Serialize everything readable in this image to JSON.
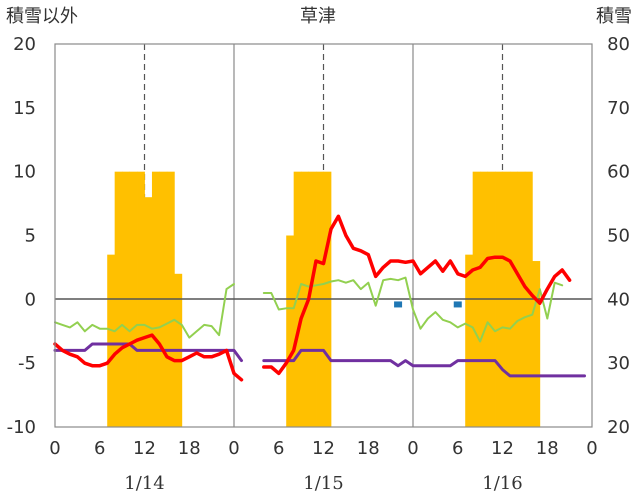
{
  "chart_data": {
    "type": "line",
    "title": "草津",
    "y_left_label": "積雪以外",
    "y_right_label": "積雪",
    "y_left_range": [
      -10,
      20
    ],
    "y_left_ticks": [
      "20",
      "15",
      "10",
      "5",
      "0",
      "-5",
      "-10"
    ],
    "y_right_range": [
      20,
      80
    ],
    "y_right_ticks": [
      "80",
      "70",
      "60",
      "50",
      "40",
      "30",
      "20"
    ],
    "x_range_hours": [
      0,
      72
    ],
    "x_tick_labels": [
      "0",
      "6",
      "12",
      "18",
      "0",
      "6",
      "12",
      "18",
      "0",
      "6",
      "12",
      "18",
      "0"
    ],
    "day_labels": [
      "1/14",
      "1/15",
      "1/16"
    ],
    "grid": "dashed vertical at 12h, solid vertical at day boundaries",
    "colors": {
      "snow_depth": "#ffc000",
      "temperature": "#ff0000",
      "wind": "#92d050",
      "pressure_trend": "#7030a0",
      "precip": "#1f77b4"
    },
    "snow_depth_bars": [
      {
        "x": 7.5,
        "v": 47
      },
      {
        "x": 8.5,
        "v": 60
      },
      {
        "x": 9.5,
        "v": 60
      },
      {
        "x": 10.5,
        "v": 60
      },
      {
        "x": 11.5,
        "v": 60
      },
      {
        "x": 12.5,
        "v": 56
      },
      {
        "x": 13.5,
        "v": 60
      },
      {
        "x": 14.5,
        "v": 60
      },
      {
        "x": 15.5,
        "v": 60
      },
      {
        "x": 16.5,
        "v": 44
      },
      {
        "x": 31.5,
        "v": 50
      },
      {
        "x": 32.5,
        "v": 60
      },
      {
        "x": 33.5,
        "v": 60
      },
      {
        "x": 34.5,
        "v": 60
      },
      {
        "x": 35.5,
        "v": 60
      },
      {
        "x": 36.5,
        "v": 60
      },
      {
        "x": 55.5,
        "v": 47
      },
      {
        "x": 56.5,
        "v": 60
      },
      {
        "x": 57.5,
        "v": 60
      },
      {
        "x": 58.5,
        "v": 60
      },
      {
        "x": 59.5,
        "v": 60
      },
      {
        "x": 60.5,
        "v": 60
      },
      {
        "x": 61.5,
        "v": 60
      },
      {
        "x": 62.5,
        "v": 60
      },
      {
        "x": 63.5,
        "v": 60
      },
      {
        "x": 64.5,
        "v": 46
      }
    ],
    "temperature": [
      [
        [
          0,
          -3.5
        ],
        [
          1,
          -4
        ],
        [
          2,
          -4.3
        ],
        [
          3,
          -4.5
        ],
        [
          4,
          -5
        ],
        [
          5,
          -5.2
        ],
        [
          6,
          -5.2
        ],
        [
          7,
          -5
        ],
        [
          8,
          -4.3
        ],
        [
          9,
          -3.8
        ],
        [
          10,
          -3.5
        ],
        [
          11,
          -3.2
        ],
        [
          12,
          -3
        ],
        [
          13,
          -2.8
        ],
        [
          14,
          -3.5
        ],
        [
          15,
          -4.5
        ],
        [
          16,
          -4.8
        ],
        [
          17,
          -4.8
        ],
        [
          18,
          -4.5
        ],
        [
          19,
          -4.2
        ],
        [
          20,
          -4.5
        ],
        [
          21,
          -4.5
        ],
        [
          22,
          -4.3
        ],
        [
          23,
          -4
        ],
        [
          24,
          -5.8
        ],
        [
          25,
          -6.3
        ]
      ],
      [
        [
          28,
          -5.3
        ],
        [
          29,
          -5.3
        ],
        [
          30,
          -5.8
        ],
        [
          31,
          -5
        ],
        [
          32,
          -4
        ],
        [
          33,
          -1.5
        ],
        [
          34,
          0
        ],
        [
          35,
          3
        ],
        [
          36,
          2.8
        ],
        [
          37,
          5.5
        ],
        [
          38,
          6.5
        ],
        [
          39,
          5
        ],
        [
          40,
          4
        ],
        [
          41,
          3.8
        ],
        [
          42,
          3.5
        ],
        [
          43,
          1.8
        ],
        [
          44,
          2.5
        ],
        [
          45,
          3
        ],
        [
          46,
          3
        ],
        [
          47,
          2.9
        ],
        [
          48,
          3
        ],
        [
          49,
          2
        ],
        [
          50,
          2.5
        ],
        [
          51,
          3
        ],
        [
          52,
          2.2
        ],
        [
          53,
          3
        ],
        [
          54,
          2
        ],
        [
          55,
          1.8
        ],
        [
          56,
          2.3
        ],
        [
          57,
          2.5
        ],
        [
          58,
          3.2
        ],
        [
          59,
          3.3
        ],
        [
          60,
          3.3
        ],
        [
          61,
          3
        ],
        [
          62,
          2
        ],
        [
          63,
          1
        ],
        [
          64,
          0.3
        ],
        [
          65,
          -0.3
        ],
        [
          66,
          0.8
        ],
        [
          67,
          1.8
        ],
        [
          68,
          2.3
        ],
        [
          69,
          1.5
        ]
      ]
    ],
    "wind": [
      [
        [
          0,
          -1.8
        ],
        [
          1,
          -2
        ],
        [
          2,
          -2.2
        ],
        [
          3,
          -1.8
        ],
        [
          4,
          -2.5
        ],
        [
          5,
          -2
        ],
        [
          6,
          -2.3
        ],
        [
          7,
          -2.3
        ],
        [
          8,
          -2.5
        ],
        [
          9,
          -2
        ],
        [
          10,
          -2.5
        ],
        [
          11,
          -2
        ],
        [
          12,
          -2
        ],
        [
          13,
          -2.3
        ],
        [
          14,
          -2.2
        ],
        [
          15,
          -1.9
        ],
        [
          16,
          -1.6
        ],
        [
          17,
          -2
        ],
        [
          18,
          -3
        ],
        [
          19,
          -2.5
        ],
        [
          20,
          -2
        ],
        [
          21,
          -2.1
        ],
        [
          22,
          -2.8
        ],
        [
          23,
          0.8
        ],
        [
          24,
          1.2
        ]
      ],
      [
        [
          28,
          0.5
        ],
        [
          29,
          0.5
        ],
        [
          30,
          -0.8
        ],
        [
          31,
          -0.7
        ],
        [
          32,
          -0.7
        ],
        [
          33,
          1.2
        ],
        [
          34,
          1
        ],
        [
          35,
          1.1
        ],
        [
          36,
          1.2
        ],
        [
          37,
          1.4
        ],
        [
          38,
          1.5
        ],
        [
          39,
          1.3
        ],
        [
          40,
          1.5
        ],
        [
          41,
          0.8
        ],
        [
          42,
          1.3
        ],
        [
          43,
          -0.5
        ],
        [
          44,
          1.5
        ],
        [
          45,
          1.6
        ],
        [
          46,
          1.5
        ],
        [
          47,
          1.7
        ],
        [
          48,
          -0.8
        ],
        [
          49,
          -2.3
        ],
        [
          50,
          -1.5
        ],
        [
          51,
          -1
        ],
        [
          52,
          -1.6
        ],
        [
          53,
          -1.8
        ],
        [
          54,
          -2.2
        ],
        [
          55,
          -1.9
        ],
        [
          56,
          -2.2
        ],
        [
          57,
          -3.3
        ],
        [
          58,
          -1.8
        ],
        [
          59,
          -2.5
        ],
        [
          60,
          -2.2
        ],
        [
          61,
          -2.3
        ],
        [
          62,
          -1.7
        ],
        [
          63,
          -1.4
        ],
        [
          64,
          -1.2
        ],
        [
          65,
          0.8
        ],
        [
          66,
          -1.5
        ],
        [
          67,
          1.3
        ],
        [
          68,
          1.1
        ]
      ]
    ],
    "pressure_trend": [
      [
        [
          0,
          -4
        ],
        [
          4,
          -4
        ],
        [
          5,
          -3.5
        ],
        [
          10,
          -3.5
        ],
        [
          11,
          -4
        ],
        [
          24,
          -4
        ],
        [
          25,
          -4.8
        ]
      ],
      [
        [
          28,
          -4.8
        ],
        [
          32,
          -4.8
        ],
        [
          33,
          -4
        ],
        [
          36,
          -4
        ],
        [
          37,
          -4.8
        ],
        [
          45,
          -4.8
        ],
        [
          46,
          -5.2
        ],
        [
          47,
          -4.8
        ],
        [
          48,
          -5.2
        ],
        [
          53,
          -5.2
        ],
        [
          54,
          -4.8
        ],
        [
          59,
          -4.8
        ],
        [
          60,
          -5.5
        ],
        [
          61,
          -6
        ],
        [
          71,
          -6
        ]
      ]
    ],
    "precip_marks": [
      {
        "x": 46,
        "v": -0.4
      },
      {
        "x": 54,
        "v": -0.4
      }
    ]
  }
}
